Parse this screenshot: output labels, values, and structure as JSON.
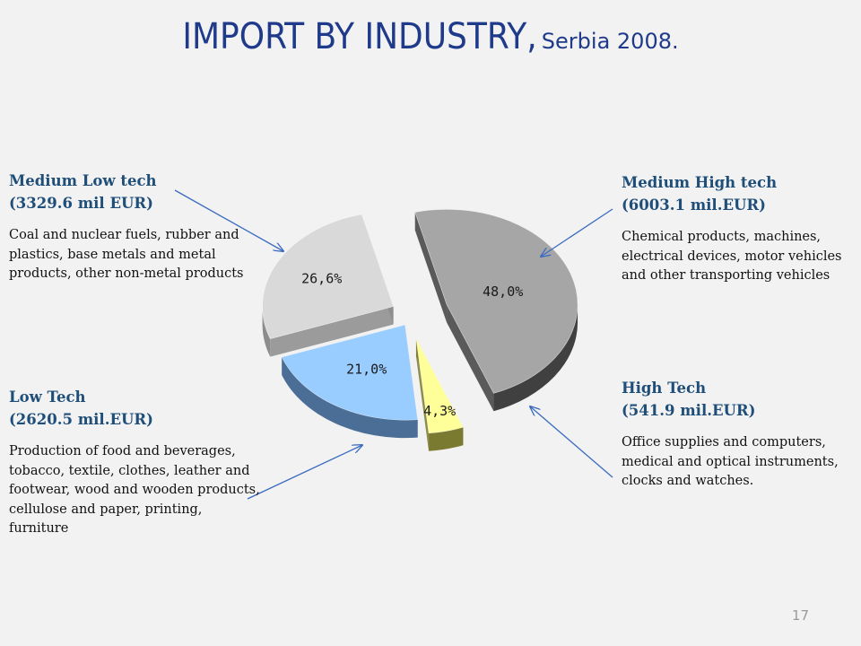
{
  "title": {
    "main": "IMPORT BY INDUSTRY,",
    "sub": "Serbia 2008."
  },
  "page_number": "17",
  "categories": {
    "medium_low": {
      "name": "Medium Low tech",
      "amount": "(3329.6  mil EUR)",
      "description": "Coal and nuclear fuels, rubber and plastics, base metals and metal products, other non-metal products"
    },
    "medium_high": {
      "name": "Medium High tech",
      "amount": "(6003.1  mil.EUR)",
      "description": "Chemical products, machines, electrical devices, motor vehicles and other transporting vehicles"
    },
    "low": {
      "name": "Low Tech",
      "amount": "(2620.5  mil.EUR)",
      "description": "Production of food and beverages, tobacco, textile, clothes, leather and footwear, wood and wooden products, cellulose and paper, printing, furniture"
    },
    "high": {
      "name": "High Tech",
      "amount": "(541.9 mil.EUR)",
      "description": "Office supplies and computers, medical and optical instruments, clocks and watches."
    }
  },
  "chart_data": {
    "type": "pie",
    "style": "3d-exploded",
    "categories": [
      "Medium High tech",
      "High Tech",
      "Low Tech",
      "Medium Low tech"
    ],
    "values": [
      48.0,
      4.3,
      21.0,
      26.6
    ],
    "labels": [
      "48,0%",
      "4,3%",
      "21,0%",
      "26,6%"
    ],
    "colors": [
      "#a6a6a6",
      "#ffff99",
      "#99ccff",
      "#d9d9d9"
    ],
    "side_colors": [
      "#404040",
      "#7a7a30",
      "#4a6e96",
      "#8c8c8c"
    ]
  }
}
